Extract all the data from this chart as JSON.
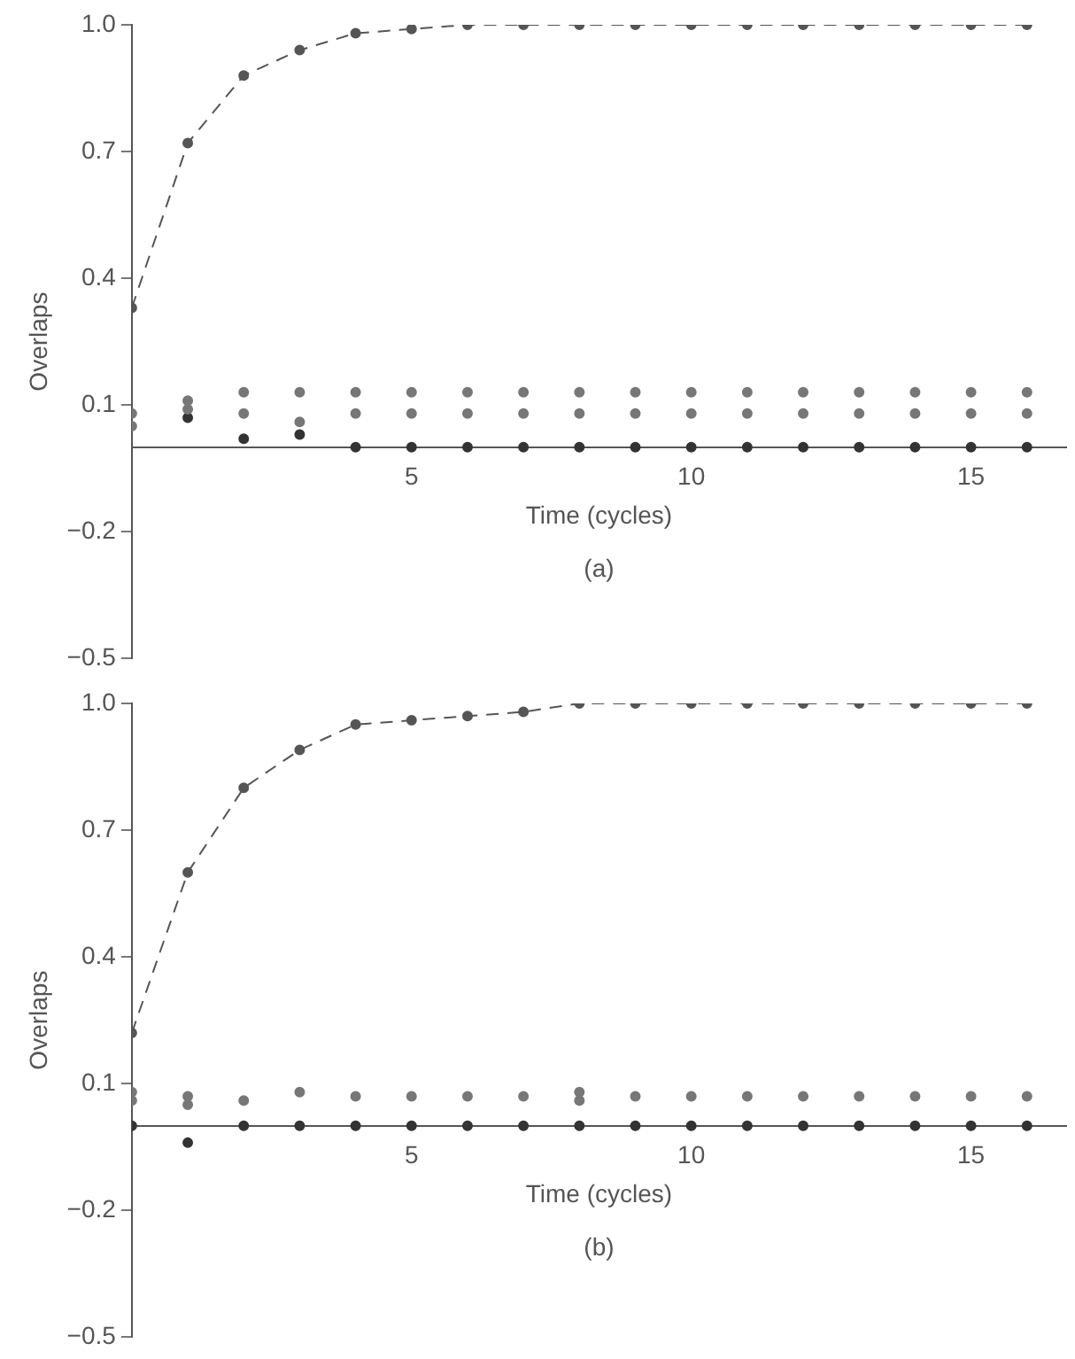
{
  "chart_data": [
    {
      "type": "line",
      "xlabel": "Time (cycles)",
      "ylabel": "Overlaps",
      "annotations": [
        "(a)"
      ],
      "xlim": [
        0,
        16.7
      ],
      "xticks": [
        5,
        10,
        15
      ],
      "ylim": [
        -0.5,
        1.0
      ],
      "yticks": [
        -0.5,
        -0.2,
        0.1,
        0.4,
        0.7,
        {
          "value": 1,
          "label": "1.0"
        }
      ],
      "grid": false,
      "legend": false,
      "marker": "circle",
      "line_style": "dashed",
      "x": [
        0,
        1,
        2,
        3,
        4,
        5,
        6,
        7,
        8,
        9,
        10,
        11,
        12,
        13,
        14,
        15,
        16
      ],
      "series": [
        {
          "type": "line",
          "color": "#555555",
          "values": [
            0.33,
            0.72,
            0.88,
            0.94,
            0.98,
            0.99,
            1.0,
            1.0,
            1.0,
            1.0,
            1.0,
            1.0,
            1.0,
            1.0,
            1.0,
            1.0,
            1.0
          ]
        },
        {
          "type": "scatter",
          "color": "#777777",
          "values": [
            0.08,
            0.11,
            0.13,
            0.13,
            0.13,
            0.13,
            0.13,
            0.13,
            0.13,
            0.13,
            0.13,
            0.13,
            0.13,
            0.13,
            0.13,
            0.13,
            0.13
          ]
        },
        {
          "type": "scatter",
          "color": "#777777",
          "values": [
            0.05,
            0.09,
            0.08,
            0.06,
            0.08,
            0.08,
            0.08,
            0.08,
            0.08,
            0.08,
            0.08,
            0.08,
            0.08,
            0.08,
            0.08,
            0.08,
            0.08
          ]
        },
        {
          "type": "scatter",
          "color": "#333333",
          "values": [
            null,
            0.07,
            0.02,
            0.03,
            0.0,
            0.0,
            0.0,
            0.0,
            0.0,
            0.0,
            0.0,
            0.0,
            0.0,
            0.0,
            0.0,
            0.0,
            0.0
          ]
        }
      ]
    },
    {
      "type": "line",
      "xlabel": "Time (cycles)",
      "ylabel": "Overlaps",
      "annotations": [
        "(b)"
      ],
      "xlim": [
        0,
        16.7
      ],
      "xticks": [
        5,
        10,
        15
      ],
      "ylim": [
        -0.5,
        1.0
      ],
      "yticks": [
        -0.5,
        -0.2,
        0.1,
        0.4,
        0.7,
        {
          "value": 1,
          "label": "1.0"
        }
      ],
      "grid": false,
      "legend": false,
      "marker": "circle",
      "line_style": "dashed",
      "x": [
        0,
        1,
        2,
        3,
        4,
        5,
        6,
        7,
        8,
        9,
        10,
        11,
        12,
        13,
        14,
        15,
        16
      ],
      "series": [
        {
          "type": "line",
          "color": "#555555",
          "values": [
            0.22,
            0.6,
            0.8,
            0.89,
            0.95,
            0.96,
            0.97,
            0.98,
            1.0,
            1.0,
            1.0,
            1.0,
            1.0,
            1.0,
            1.0,
            1.0,
            1.0
          ]
        },
        {
          "type": "scatter",
          "color": "#777777",
          "values": [
            0.08,
            0.07,
            0.06,
            0.08,
            0.07,
            0.07,
            0.07,
            0.07,
            0.08,
            0.07,
            0.07,
            0.07,
            0.07,
            0.07,
            0.07,
            0.07,
            0.07
          ]
        },
        {
          "type": "scatter",
          "color": "#777777",
          "values": [
            0.06,
            0.05,
            null,
            null,
            null,
            null,
            null,
            null,
            0.06,
            null,
            null,
            null,
            null,
            null,
            null,
            null,
            null
          ]
        },
        {
          "type": "scatter",
          "color": "#333333",
          "values": [
            0.0,
            -0.04,
            0.0,
            0.0,
            0.0,
            0.0,
            0.0,
            0.0,
            0.0,
            0.0,
            0.0,
            0.0,
            0.0,
            0.0,
            0.0,
            0.0,
            0.0
          ]
        }
      ]
    }
  ]
}
